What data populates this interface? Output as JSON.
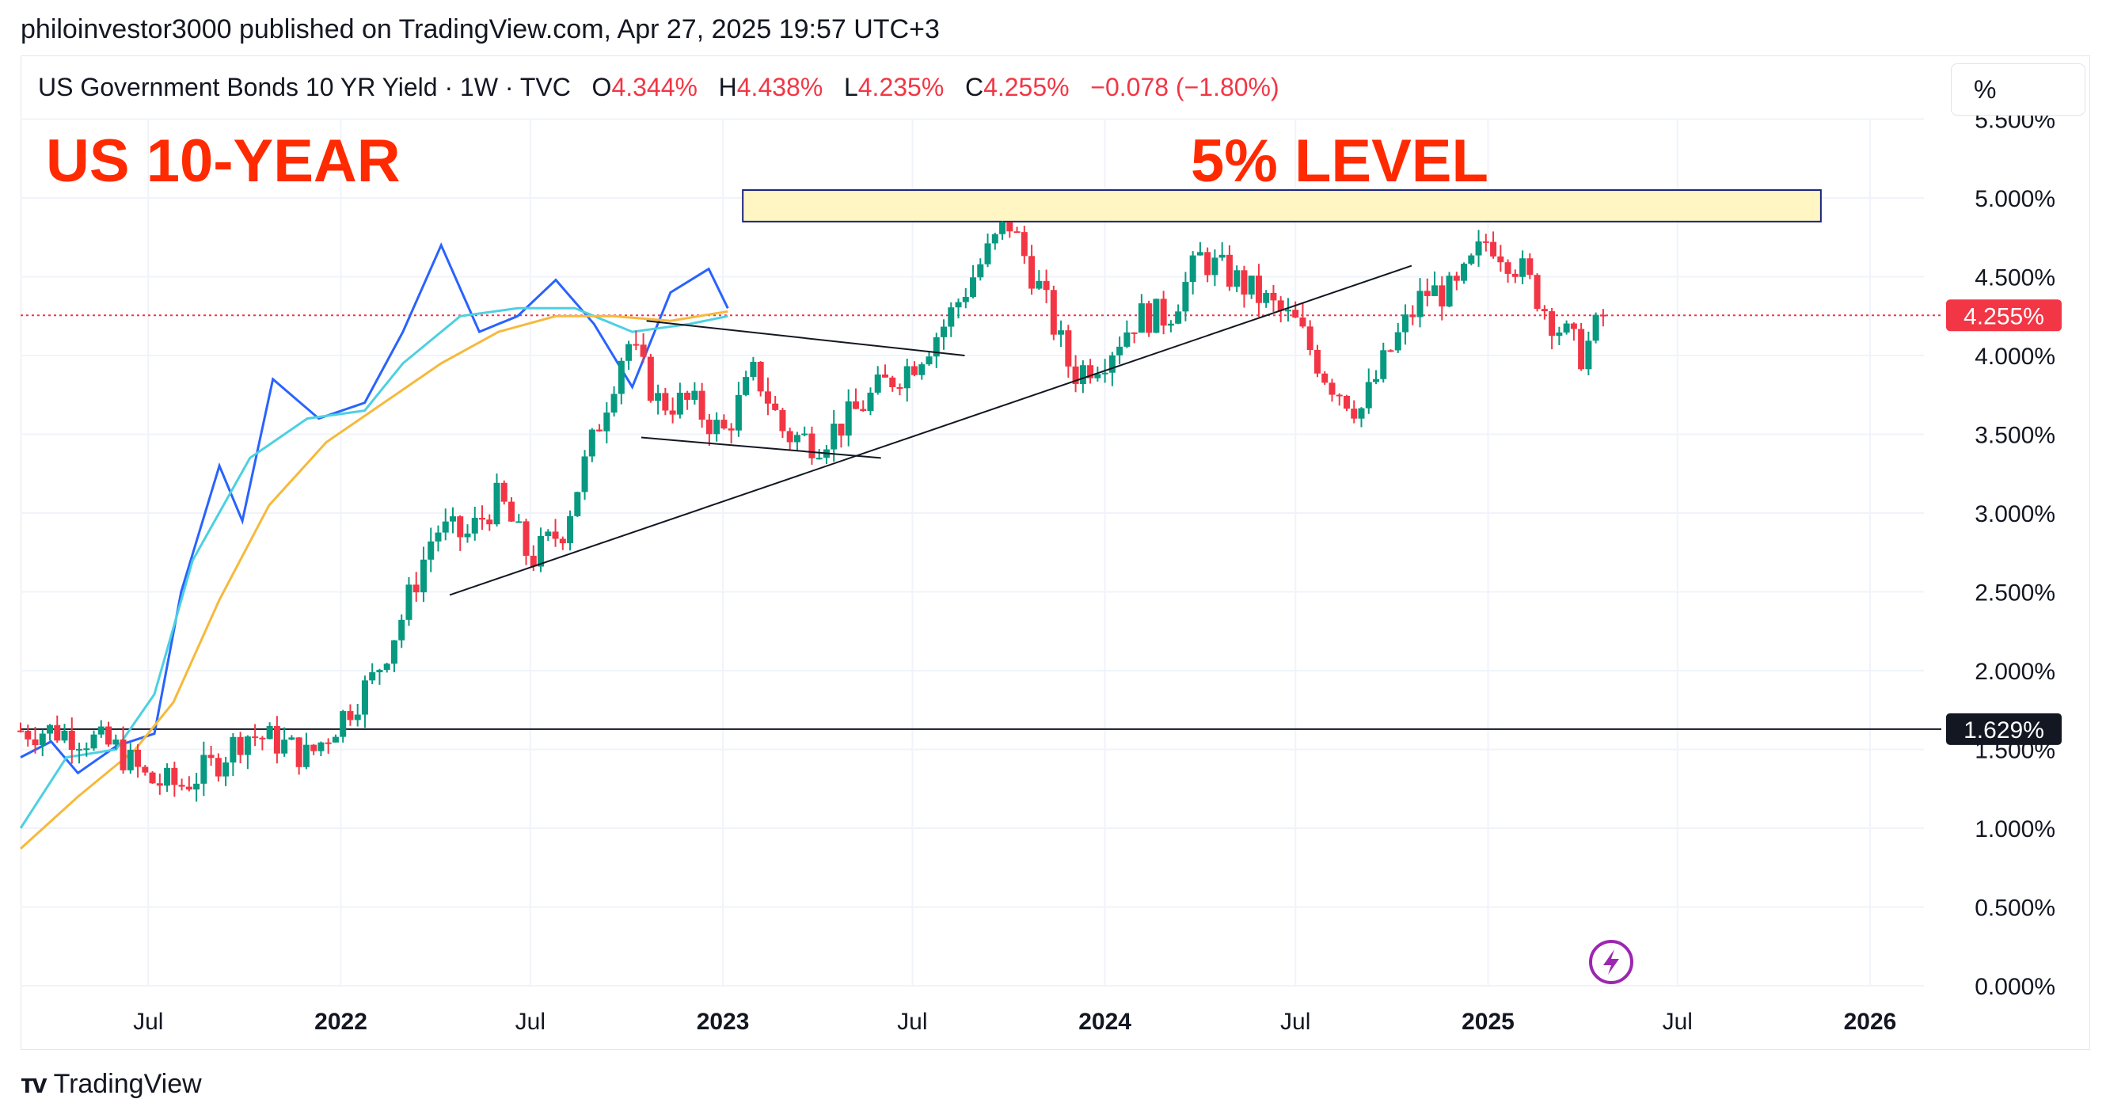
{
  "header": {
    "publisher": "philoinvestor3000 published on TradingView.com, Apr 27, 2025 19:57 UTC+3",
    "symbol": "US Government Bonds 10 YR Yield · 1W · TVC",
    "o_label": "O",
    "o_value": "4.344%",
    "h_label": "H",
    "h_value": "4.438%",
    "l_label": "L",
    "l_value": "4.235%",
    "c_label": "C",
    "c_value": "4.255%",
    "change": "−0.078 (−1.80%)"
  },
  "toolbar": {
    "percent_label": "%"
  },
  "annotations": {
    "title": "US 10-YEAR",
    "level_label": "5% LEVEL"
  },
  "footer": {
    "brand": "TradingView"
  },
  "colors": {
    "up": "#089981",
    "down": "#f23645",
    "ma_fast": "#2962ff",
    "ma_mid": "#4dd0e1",
    "ma_slow": "#f6b93b",
    "zone_fill": "#fff6c4",
    "zone_border": "#1a237e",
    "annotation": "#ff2a00",
    "icon": "#9c27b0"
  },
  "icons": {
    "alert": "lightning-bolt-icon"
  },
  "chart_data": {
    "type": "candlestick",
    "timeframe": "1W",
    "x_range": [
      "2021-03-01",
      "2026-03-01"
    ],
    "ylim": [
      0,
      5.5
    ],
    "y_ticks": [
      "0.000%",
      "0.500%",
      "1.000%",
      "1.500%",
      "2.000%",
      "2.500%",
      "3.000%",
      "3.500%",
      "4.000%",
      "4.500%",
      "5.000%",
      "5.500%"
    ],
    "y_tick_values": [
      0,
      0.5,
      1.0,
      1.5,
      2.0,
      2.5,
      3.0,
      3.5,
      4.0,
      4.5,
      5.0,
      5.5
    ],
    "x_ticks": [
      {
        "label": "Jul",
        "date": "2021-07-01",
        "bold": false
      },
      {
        "label": "2022",
        "date": "2022-01-01",
        "bold": true
      },
      {
        "label": "Jul",
        "date": "2022-07-01",
        "bold": false
      },
      {
        "label": "2023",
        "date": "2023-01-01",
        "bold": true
      },
      {
        "label": "Jul",
        "date": "2023-07-01",
        "bold": false
      },
      {
        "label": "2024",
        "date": "2024-01-01",
        "bold": true
      },
      {
        "label": "Jul",
        "date": "2024-07-01",
        "bold": false
      },
      {
        "label": "2025",
        "date": "2025-01-01",
        "bold": true
      },
      {
        "label": "Jul",
        "date": "2025-07-01",
        "bold": false
      },
      {
        "label": "2026",
        "date": "2026-01-01",
        "bold": true
      }
    ],
    "close_path": [
      [
        "2021-03-01",
        1.62
      ],
      [
        "2021-04-01",
        1.62
      ],
      [
        "2021-05-01",
        1.58
      ],
      [
        "2021-06-01",
        1.5
      ],
      [
        "2021-07-01",
        1.3
      ],
      [
        "2021-08-01",
        1.27
      ],
      [
        "2021-09-01",
        1.4
      ],
      [
        "2021-10-01",
        1.6
      ],
      [
        "2021-11-01",
        1.55
      ],
      [
        "2021-12-01",
        1.45
      ],
      [
        "2022-01-01",
        1.7
      ],
      [
        "2022-02-01",
        1.95
      ],
      [
        "2022-03-01",
        2.35
      ],
      [
        "2022-04-01",
        2.9
      ],
      [
        "2022-05-01",
        2.85
      ],
      [
        "2022-06-01",
        3.1
      ],
      [
        "2022-07-01",
        2.7
      ],
      [
        "2022-08-01",
        2.9
      ],
      [
        "2022-09-01",
        3.5
      ],
      [
        "2022-10-01",
        4.1
      ],
      [
        "2022-11-01",
        3.7
      ],
      [
        "2022-12-01",
        3.7
      ],
      [
        "2023-01-01",
        3.5
      ],
      [
        "2023-02-01",
        3.9
      ],
      [
        "2023-03-01",
        3.5
      ],
      [
        "2023-04-01",
        3.45
      ],
      [
        "2023-05-01",
        3.6
      ],
      [
        "2023-06-01",
        3.8
      ],
      [
        "2023-07-01",
        3.95
      ],
      [
        "2023-08-01",
        4.2
      ],
      [
        "2023-09-01",
        4.55
      ],
      [
        "2023-10-01",
        4.85
      ],
      [
        "2023-11-01",
        4.4
      ],
      [
        "2023-12-01",
        3.88
      ],
      [
        "2024-01-01",
        4.0
      ],
      [
        "2024-02-01",
        4.25
      ],
      [
        "2024-03-01",
        4.25
      ],
      [
        "2024-04-01",
        4.62
      ],
      [
        "2024-05-01",
        4.5
      ],
      [
        "2024-06-01",
        4.35
      ],
      [
        "2024-07-01",
        4.2
      ],
      [
        "2024-08-01",
        3.85
      ],
      [
        "2024-09-01",
        3.65
      ],
      [
        "2024-10-01",
        4.05
      ],
      [
        "2024-11-01",
        4.4
      ],
      [
        "2024-12-01",
        4.4
      ],
      [
        "2025-01-01",
        4.75
      ],
      [
        "2025-02-01",
        4.55
      ],
      [
        "2025-03-01",
        4.25
      ],
      [
        "2025-04-01",
        4.0
      ],
      [
        "2025-04-21",
        4.255
      ]
    ],
    "series": [
      {
        "name": "",
        "role": "ma_fast",
        "values": [
          [
            0,
            1.45
          ],
          [
            0.08,
            1.55
          ],
          [
            0.15,
            1.35
          ],
          [
            0.25,
            1.52
          ],
          [
            0.35,
            1.6
          ],
          [
            0.42,
            2.5
          ],
          [
            0.52,
            3.3
          ],
          [
            0.58,
            2.95
          ],
          [
            0.66,
            3.85
          ],
          [
            0.78,
            3.6
          ],
          [
            0.9,
            3.7
          ],
          [
            1.0,
            4.15
          ],
          [
            1.1,
            4.7
          ],
          [
            1.2,
            4.15
          ],
          [
            1.3,
            4.25
          ],
          [
            1.4,
            4.48
          ],
          [
            1.5,
            4.2
          ],
          [
            1.6,
            3.8
          ],
          [
            1.7,
            4.4
          ],
          [
            1.8,
            4.55
          ],
          [
            1.85,
            4.3
          ]
        ]
      },
      {
        "name": "",
        "role": "ma_mid",
        "values": [
          [
            0,
            1.0
          ],
          [
            0.12,
            1.45
          ],
          [
            0.25,
            1.5
          ],
          [
            0.35,
            1.85
          ],
          [
            0.45,
            2.7
          ],
          [
            0.6,
            3.35
          ],
          [
            0.75,
            3.6
          ],
          [
            0.9,
            3.65
          ],
          [
            1.0,
            3.95
          ],
          [
            1.15,
            4.25
          ],
          [
            1.3,
            4.3
          ],
          [
            1.45,
            4.3
          ],
          [
            1.6,
            4.15
          ],
          [
            1.75,
            4.2
          ],
          [
            1.85,
            4.25
          ]
        ]
      },
      {
        "name": "",
        "role": "ma_slow",
        "values": [
          [
            0,
            0.87
          ],
          [
            0.15,
            1.2
          ],
          [
            0.3,
            1.5
          ],
          [
            0.4,
            1.8
          ],
          [
            0.52,
            2.45
          ],
          [
            0.65,
            3.05
          ],
          [
            0.8,
            3.45
          ],
          [
            0.95,
            3.7
          ],
          [
            1.1,
            3.95
          ],
          [
            1.25,
            4.15
          ],
          [
            1.4,
            4.25
          ],
          [
            1.55,
            4.25
          ],
          [
            1.7,
            4.22
          ],
          [
            1.85,
            4.28
          ]
        ]
      }
    ],
    "horizontal_lines": [
      {
        "value": 1.629,
        "label": "1.629%",
        "style": "solid"
      },
      {
        "value": 4.255,
        "label": "4.255%",
        "style": "dotted"
      }
    ],
    "zone": {
      "from_date": "2023-01-20",
      "to_date": "2025-11-15",
      "y_low": 4.85,
      "y_high": 5.05
    },
    "trendlines": [
      {
        "x1": "2022-04-15",
        "y1": 2.48,
        "x2": "2024-10-20",
        "y2": 4.57
      },
      {
        "x1": "2022-10-20",
        "y1": 4.22,
        "x2": "2023-08-20",
        "y2": 4.0
      },
      {
        "x1": "2022-10-15",
        "y1": 3.48,
        "x2": "2023-06-01",
        "y2": 3.35
      }
    ],
    "legend": "none",
    "grid": true
  }
}
